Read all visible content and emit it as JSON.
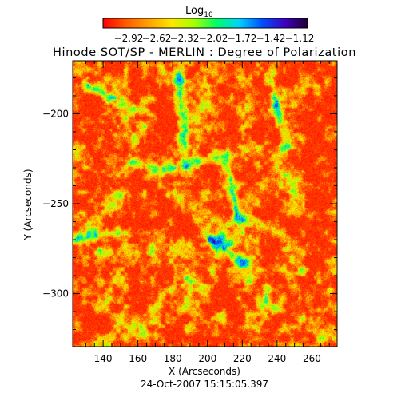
{
  "chart_data": {
    "type": "heatmap",
    "title": "Hinode SOT/SP - MERLIN : Degree of Polarization",
    "colorbar": {
      "label_main": "Log",
      "label_sub": "10",
      "ticks": [
        "−2.92",
        "−2.62",
        "−2.32",
        "−2.02",
        "−1.72",
        "−1.42",
        "−1.12"
      ],
      "range": [
        -2.92,
        -1.12
      ],
      "colormap": [
        "#ff0000",
        "#ff5a00",
        "#ffa000",
        "#ffe600",
        "#a6ff00",
        "#00ff66",
        "#00d0ff",
        "#0050ff",
        "#4000c0",
        "#200030"
      ]
    },
    "xlabel": "X (Arcseconds)",
    "ylabel": "Y (Arcseconds)",
    "xlim": [
      122.5,
      274.5
    ],
    "ylim": [
      -329.5,
      -170.5
    ],
    "xticks": [
      140,
      160,
      180,
      200,
      220,
      240,
      260
    ],
    "xticklabels": [
      "140",
      "160",
      "180",
      "200",
      "220",
      "240",
      "260"
    ],
    "yticks": [
      -200,
      -250,
      -300
    ],
    "yticklabels": [
      "−200",
      "−250",
      "−300"
    ],
    "field_description": "mostly red/orange values with yellow-green network lanes and scattered blue/dark patches of higher polarization",
    "timestamp": "24-Oct-2007 15:15:05.397"
  }
}
